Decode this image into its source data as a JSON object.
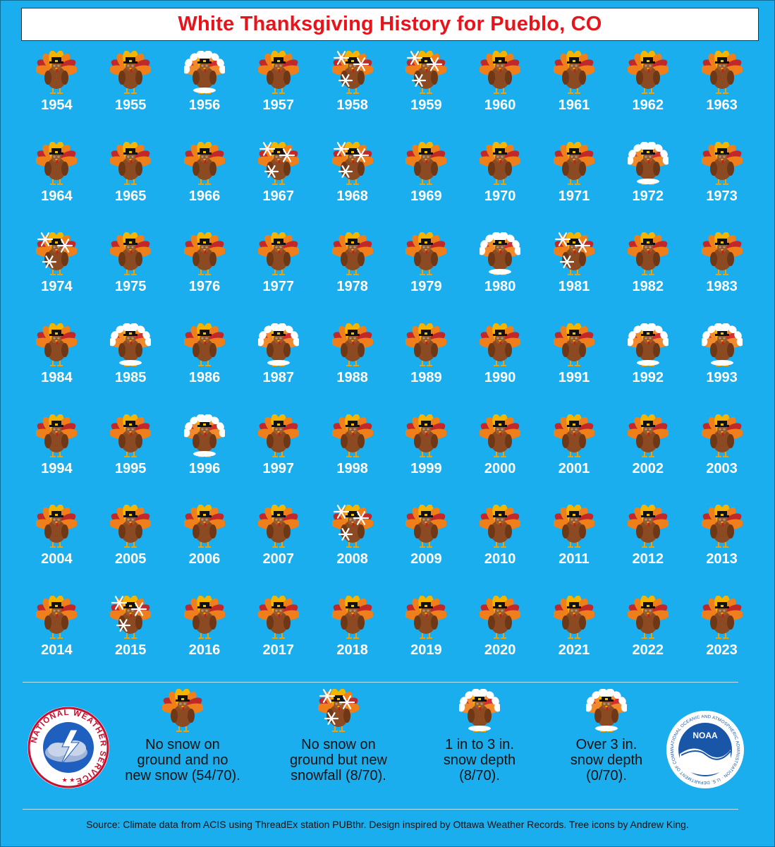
{
  "title": "White Thanksgiving History for Pueblo, CO",
  "years": [
    {
      "year": "1954",
      "type": "none"
    },
    {
      "year": "1955",
      "type": "none"
    },
    {
      "year": "1956",
      "type": "snow1to3"
    },
    {
      "year": "1957",
      "type": "none"
    },
    {
      "year": "1958",
      "type": "newsnow"
    },
    {
      "year": "1959",
      "type": "newsnow"
    },
    {
      "year": "1960",
      "type": "none"
    },
    {
      "year": "1961",
      "type": "none"
    },
    {
      "year": "1962",
      "type": "none"
    },
    {
      "year": "1963",
      "type": "none"
    },
    {
      "year": "1964",
      "type": "none"
    },
    {
      "year": "1965",
      "type": "none"
    },
    {
      "year": "1966",
      "type": "none"
    },
    {
      "year": "1967",
      "type": "newsnow"
    },
    {
      "year": "1968",
      "type": "newsnow"
    },
    {
      "year": "1969",
      "type": "none"
    },
    {
      "year": "1970",
      "type": "none"
    },
    {
      "year": "1971",
      "type": "none"
    },
    {
      "year": "1972",
      "type": "snow1to3"
    },
    {
      "year": "1973",
      "type": "none"
    },
    {
      "year": "1974",
      "type": "newsnow"
    },
    {
      "year": "1975",
      "type": "none"
    },
    {
      "year": "1976",
      "type": "none"
    },
    {
      "year": "1977",
      "type": "none"
    },
    {
      "year": "1978",
      "type": "none"
    },
    {
      "year": "1979",
      "type": "none"
    },
    {
      "year": "1980",
      "type": "snow1to3"
    },
    {
      "year": "1981",
      "type": "newsnow"
    },
    {
      "year": "1982",
      "type": "none"
    },
    {
      "year": "1983",
      "type": "none"
    },
    {
      "year": "1984",
      "type": "none"
    },
    {
      "year": "1985",
      "type": "snow1to3"
    },
    {
      "year": "1986",
      "type": "none"
    },
    {
      "year": "1987",
      "type": "snow1to3"
    },
    {
      "year": "1988",
      "type": "none"
    },
    {
      "year": "1989",
      "type": "none"
    },
    {
      "year": "1990",
      "type": "none"
    },
    {
      "year": "1991",
      "type": "none"
    },
    {
      "year": "1992",
      "type": "snow1to3"
    },
    {
      "year": "1993",
      "type": "snow1to3"
    },
    {
      "year": "1994",
      "type": "none"
    },
    {
      "year": "1995",
      "type": "none"
    },
    {
      "year": "1996",
      "type": "snow1to3"
    },
    {
      "year": "1997",
      "type": "none"
    },
    {
      "year": "1998",
      "type": "none"
    },
    {
      "year": "1999",
      "type": "none"
    },
    {
      "year": "2000",
      "type": "none"
    },
    {
      "year": "2001",
      "type": "none"
    },
    {
      "year": "2002",
      "type": "none"
    },
    {
      "year": "2003",
      "type": "none"
    },
    {
      "year": "2004",
      "type": "none"
    },
    {
      "year": "2005",
      "type": "none"
    },
    {
      "year": "2006",
      "type": "none"
    },
    {
      "year": "2007",
      "type": "none"
    },
    {
      "year": "2008",
      "type": "newsnow"
    },
    {
      "year": "2009",
      "type": "none"
    },
    {
      "year": "2010",
      "type": "none"
    },
    {
      "year": "2011",
      "type": "none"
    },
    {
      "year": "2012",
      "type": "none"
    },
    {
      "year": "2013",
      "type": "none"
    },
    {
      "year": "2014",
      "type": "none"
    },
    {
      "year": "2015",
      "type": "newsnow"
    },
    {
      "year": "2016",
      "type": "none"
    },
    {
      "year": "2017",
      "type": "none"
    },
    {
      "year": "2018",
      "type": "none"
    },
    {
      "year": "2019",
      "type": "none"
    },
    {
      "year": "2020",
      "type": "none"
    },
    {
      "year": "2021",
      "type": "none"
    },
    {
      "year": "2022",
      "type": "none"
    },
    {
      "year": "2023",
      "type": "none"
    }
  ],
  "legend": [
    {
      "type": "none",
      "lines": [
        "No snow on",
        "ground and no",
        "new snow (54/70)."
      ]
    },
    {
      "type": "newsnow",
      "lines": [
        "No snow on",
        "ground but new",
        "snowfall (8/70)."
      ]
    },
    {
      "type": "snow1to3",
      "lines": [
        "1 in to 3 in.",
        "snow depth",
        "(8/70)."
      ]
    },
    {
      "type": "over3",
      "lines": [
        "Over 3 in.",
        "snow depth",
        "(0/70)."
      ]
    }
  ],
  "logos": {
    "nws_text": "NATIONAL WEATHER SERVICE",
    "noaa_text": "NOAA",
    "noaa_ring_text": "NATIONAL OCEANIC AND ATMOSPHERIC ADMINISTRATION · U.S. DEPARTMENT OF COMMERCE"
  },
  "source": "Source: Climate data from ACIS using ThreadEx station PUBthr. Design inspired by Ottawa Weather Records. Tree icons by Andrew King.",
  "colors": {
    "background": "#1aaeee",
    "title_text": "#e8141b",
    "year_text": "#ffffff",
    "turkey_body": "#8b4a22",
    "turkey_feather_red": "#c0282a",
    "turkey_feather_orange": "#ef7f1a",
    "turkey_feather_yellow": "#f5b400",
    "snow": "#ffffff"
  }
}
